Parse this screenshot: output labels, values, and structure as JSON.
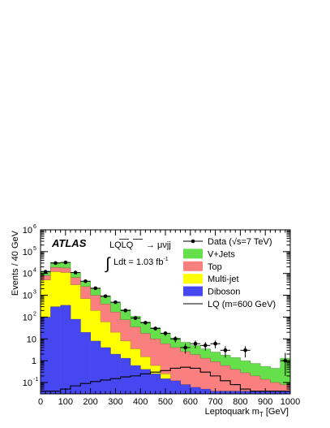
{
  "chart_data": {
    "type": "bar",
    "stacked": true,
    "xlabel_main": "Leptoquark m",
    "xlabel_sub": "T",
    "xlabel_unit": " [GeV]",
    "ylabel": "Events / 40 GeV",
    "yscale": "log",
    "xlim": [
      0,
      1000
    ],
    "ylim": [
      0.03,
      1000000
    ],
    "x_ticks": [
      "0",
      "100",
      "200",
      "300",
      "400",
      "500",
      "600",
      "700",
      "800",
      "900",
      "1000"
    ],
    "y_ticks": [
      {
        "base": "10",
        "exp": "-1",
        "value": 0.1
      },
      {
        "base": "1",
        "exp": "",
        "value": 1
      },
      {
        "base": "10",
        "exp": "",
        "value": 10
      },
      {
        "base": "10",
        "exp": "2",
        "value": 100
      },
      {
        "base": "10",
        "exp": "3",
        "value": 1000
      },
      {
        "base": "10",
        "exp": "4",
        "value": 10000
      },
      {
        "base": "10",
        "exp": "5",
        "value": 100000
      },
      {
        "base": "10",
        "exp": "6",
        "value": 1000000
      }
    ],
    "bin_width": 40,
    "bin_edges": [
      0,
      40,
      80,
      120,
      160,
      200,
      240,
      280,
      320,
      360,
      400,
      440,
      480,
      520,
      560,
      600,
      640,
      680,
      720,
      760,
      800,
      840,
      880,
      920,
      960,
      1000
    ],
    "stack_totals": [
      {
        "name": "V+Jets",
        "color": "#66e04a",
        "values": [
          13000,
          32000,
          32000,
          11000,
          4500,
          2000,
          950,
          450,
          220,
          110,
          60,
          33,
          18,
          11,
          7,
          5,
          3.5,
          2.5,
          1.8,
          1.4,
          1.0,
          0.75,
          0.55,
          0.45,
          1.3
        ]
      },
      {
        "name": "Top",
        "color": "#fa7f7f",
        "values": [
          8000,
          19000,
          18000,
          6500,
          2500,
          1000,
          400,
          170,
          75,
          35,
          18,
          10,
          6,
          4,
          2.6,
          1.9,
          1.3,
          0.9,
          0.6,
          0.4,
          0.28,
          0.2,
          0.14,
          0.1,
          0.08
        ]
      },
      {
        "name": "Multi-jet",
        "color": "#ffff00",
        "values": [
          5000,
          12000,
          11000,
          3000,
          700,
          200,
          60,
          20,
          8,
          3.5,
          1.5,
          0.6,
          0.25,
          0.1,
          0.05,
          0.04,
          0.04,
          0.04,
          0.04,
          0.04,
          0.04,
          0.04,
          0.04,
          0.04,
          0.04
        ]
      },
      {
        "name": "Diboson",
        "color": "#4747f2",
        "values": [
          100,
          300,
          350,
          80,
          20,
          8,
          4,
          2,
          1.3,
          0.6,
          0.4,
          0.25,
          0.15,
          0.12,
          0.08,
          0.06,
          0.05,
          0.04,
          0.04,
          0.04,
          0.04,
          0.04,
          0.04,
          0.04,
          0.04
        ]
      }
    ],
    "signal": {
      "name": "LQ (m=600 GeV)",
      "values": [
        0.04,
        0.04,
        0.05,
        0.07,
        0.09,
        0.11,
        0.13,
        0.15,
        0.18,
        0.2,
        0.25,
        0.3,
        0.35,
        0.45,
        0.5,
        0.45,
        0.3,
        0.2,
        0.12,
        0.08,
        0.05,
        0.04,
        0.04,
        0.04,
        0.04
      ]
    },
    "data_points": {
      "name": "Data",
      "x": [
        20,
        60,
        100,
        140,
        180,
        220,
        260,
        300,
        340,
        380,
        420,
        460,
        500,
        540,
        580,
        620,
        660,
        700,
        740,
        820,
        980
      ],
      "y": [
        12000,
        30000,
        32000,
        11000,
        4400,
        2100,
        900,
        480,
        200,
        90,
        55,
        30,
        18,
        10,
        4,
        6,
        5,
        6,
        3,
        3,
        1
      ],
      "err_lo": [
        110,
        170,
        180,
        100,
        66,
        46,
        30,
        22,
        14,
        9.5,
        7.4,
        5.5,
        4.2,
        3.2,
        1.9,
        2.3,
        2.1,
        2.3,
        1.6,
        1.6,
        0.8
      ],
      "err_hi": [
        110,
        170,
        180,
        100,
        66,
        46,
        30,
        22,
        14,
        9.5,
        7.4,
        5.5,
        4.2,
        3.2,
        1.9,
        2.3,
        2.1,
        2.3,
        1.6,
        1.6,
        1.3
      ]
    },
    "legend_placement": "top-right",
    "legend": [
      {
        "kind": "marker",
        "label": "Data (√s=7 TeV)"
      },
      {
        "kind": "fill",
        "label": "V+Jets",
        "color": "#66e04a"
      },
      {
        "kind": "fill",
        "label": "Top",
        "color": "#fa7f7f"
      },
      {
        "kind": "fill",
        "label": "Multi-jet",
        "color": "#ffff00"
      },
      {
        "kind": "fill",
        "label": "Diboson",
        "color": "#4747f2"
      },
      {
        "kind": "line",
        "label": "LQ (m=600 GeV)"
      }
    ],
    "annotations": {
      "experiment": "ATLAS",
      "process_left": "LQLQ",
      "process_right": "→ μνjj",
      "integral_sign": "∫",
      "lumi_text": "Ldt = 1.03 fb",
      "lumi_exp": "-1"
    },
    "grid": false
  }
}
